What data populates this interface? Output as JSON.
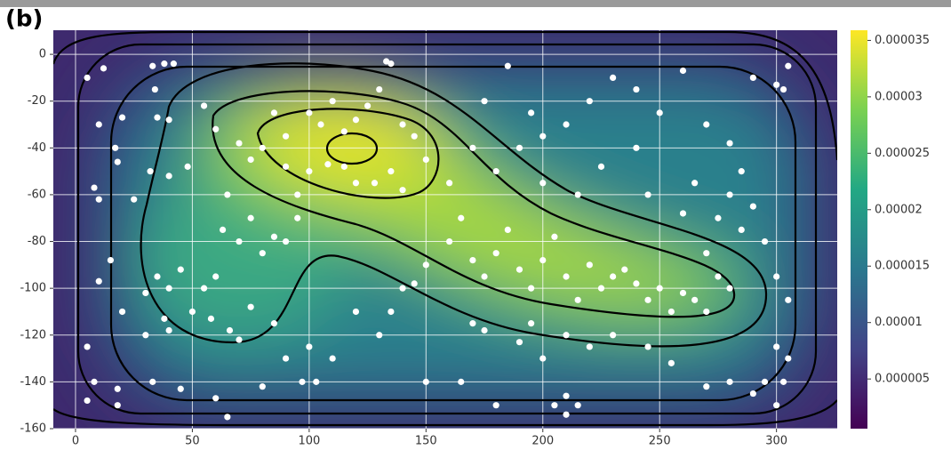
{
  "chart_data": {
    "type": "scatter",
    "panel_label": "(b)",
    "x": [
      5,
      12,
      33,
      38,
      42,
      34,
      35,
      40,
      20,
      10,
      17,
      18,
      8,
      10,
      25,
      32,
      40,
      48,
      55,
      60,
      70,
      75,
      80,
      85,
      90,
      100,
      105,
      110,
      115,
      120,
      125,
      130,
      133,
      135,
      140,
      145,
      150,
      100,
      108,
      115,
      120,
      128,
      135,
      140,
      95,
      90,
      63,
      65,
      70,
      75,
      80,
      85,
      90,
      95,
      60,
      55,
      45,
      40,
      35,
      30,
      15,
      10,
      20,
      30,
      38,
      40,
      50,
      58,
      66,
      70,
      75,
      85,
      90,
      100,
      103,
      110,
      120,
      130,
      140,
      135,
      145,
      150,
      160,
      165,
      170,
      175,
      180,
      185,
      190,
      195,
      200,
      205,
      210,
      215,
      220,
      225,
      230,
      235,
      240,
      245,
      250,
      255,
      260,
      265,
      270,
      275,
      280,
      270,
      275,
      280,
      285,
      290,
      295,
      300,
      305,
      300,
      305,
      295,
      290,
      300,
      303,
      280,
      270,
      255,
      245,
      230,
      220,
      210,
      200,
      190,
      175,
      165,
      180,
      205,
      210,
      215,
      210,
      195,
      170,
      5,
      8,
      5,
      18,
      18,
      33,
      45,
      60,
      65,
      80,
      97,
      150,
      160,
      170,
      175,
      185,
      195,
      200,
      210,
      220,
      230,
      240,
      250,
      260,
      270,
      280,
      290,
      300,
      305,
      303,
      240,
      225,
      215,
      200,
      190,
      180,
      245,
      260,
      265,
      285
    ],
    "values": [
      -10,
      -6,
      -5,
      -4,
      -4,
      -15,
      -27,
      -28,
      -27,
      -30,
      -40,
      -46,
      -57,
      -62,
      -62,
      -50,
      -52,
      -48,
      -22,
      -32,
      -38,
      -45,
      -40,
      -25,
      -35,
      -25,
      -30,
      -20,
      -33,
      -28,
      -22,
      -15,
      -3,
      -4,
      -30,
      -35,
      -45,
      -50,
      -47,
      -48,
      -55,
      -55,
      -50,
      -58,
      -60,
      -48,
      -75,
      -60,
      -80,
      -70,
      -85,
      -78,
      -80,
      -70,
      -95,
      -100,
      -92,
      -100,
      -95,
      -102,
      -88,
      -97,
      -110,
      -120,
      -113,
      -118,
      -110,
      -113,
      -118,
      -122,
      -108,
      -115,
      -130,
      -125,
      -140,
      -130,
      -110,
      -120,
      -100,
      -110,
      -98,
      -90,
      -80,
      -70,
      -88,
      -95,
      -85,
      -75,
      -92,
      -100,
      -88,
      -78,
      -95,
      -105,
      -90,
      -100,
      -95,
      -92,
      -98,
      -105,
      -100,
      -110,
      -102,
      -105,
      -110,
      -95,
      -100,
      -85,
      -70,
      -60,
      -75,
      -65,
      -80,
      -95,
      -105,
      -125,
      -130,
      -140,
      -145,
      -150,
      -140,
      -140,
      -142,
      -132,
      -125,
      -120,
      -125,
      -120,
      -130,
      -123,
      -118,
      -140,
      -150,
      -150,
      -154,
      -150,
      -146,
      -115,
      -115,
      -125,
      -140,
      -148,
      -143,
      -150,
      -140,
      -143,
      -147,
      -155,
      -142,
      -140,
      -140,
      -55,
      -40,
      -20,
      -5,
      -25,
      -35,
      -30,
      -20,
      -10,
      -15,
      -25,
      -7,
      -30,
      -38,
      -10,
      -13,
      -5,
      -15,
      -40,
      -48,
      -60,
      -55,
      -40,
      -50,
      -60,
      -68,
      -55,
      -50
    ],
    "color": "#ffffff",
    "xlim": [
      -9.5,
      326
    ],
    "ylim": [
      -160,
      10.3
    ],
    "xticks": [
      0,
      50,
      100,
      150,
      200,
      250,
      300
    ],
    "yticks": [
      0,
      -20,
      -40,
      -60,
      -80,
      -100,
      -120,
      -140,
      -160
    ],
    "grid": true,
    "colorbar": {
      "lim": [
        6e-07,
        3.59e-05
      ],
      "ticks": [
        5e-06,
        1e-05,
        1.5e-05,
        2e-05,
        2.5e-05,
        3e-05,
        3.5e-05
      ]
    }
  }
}
